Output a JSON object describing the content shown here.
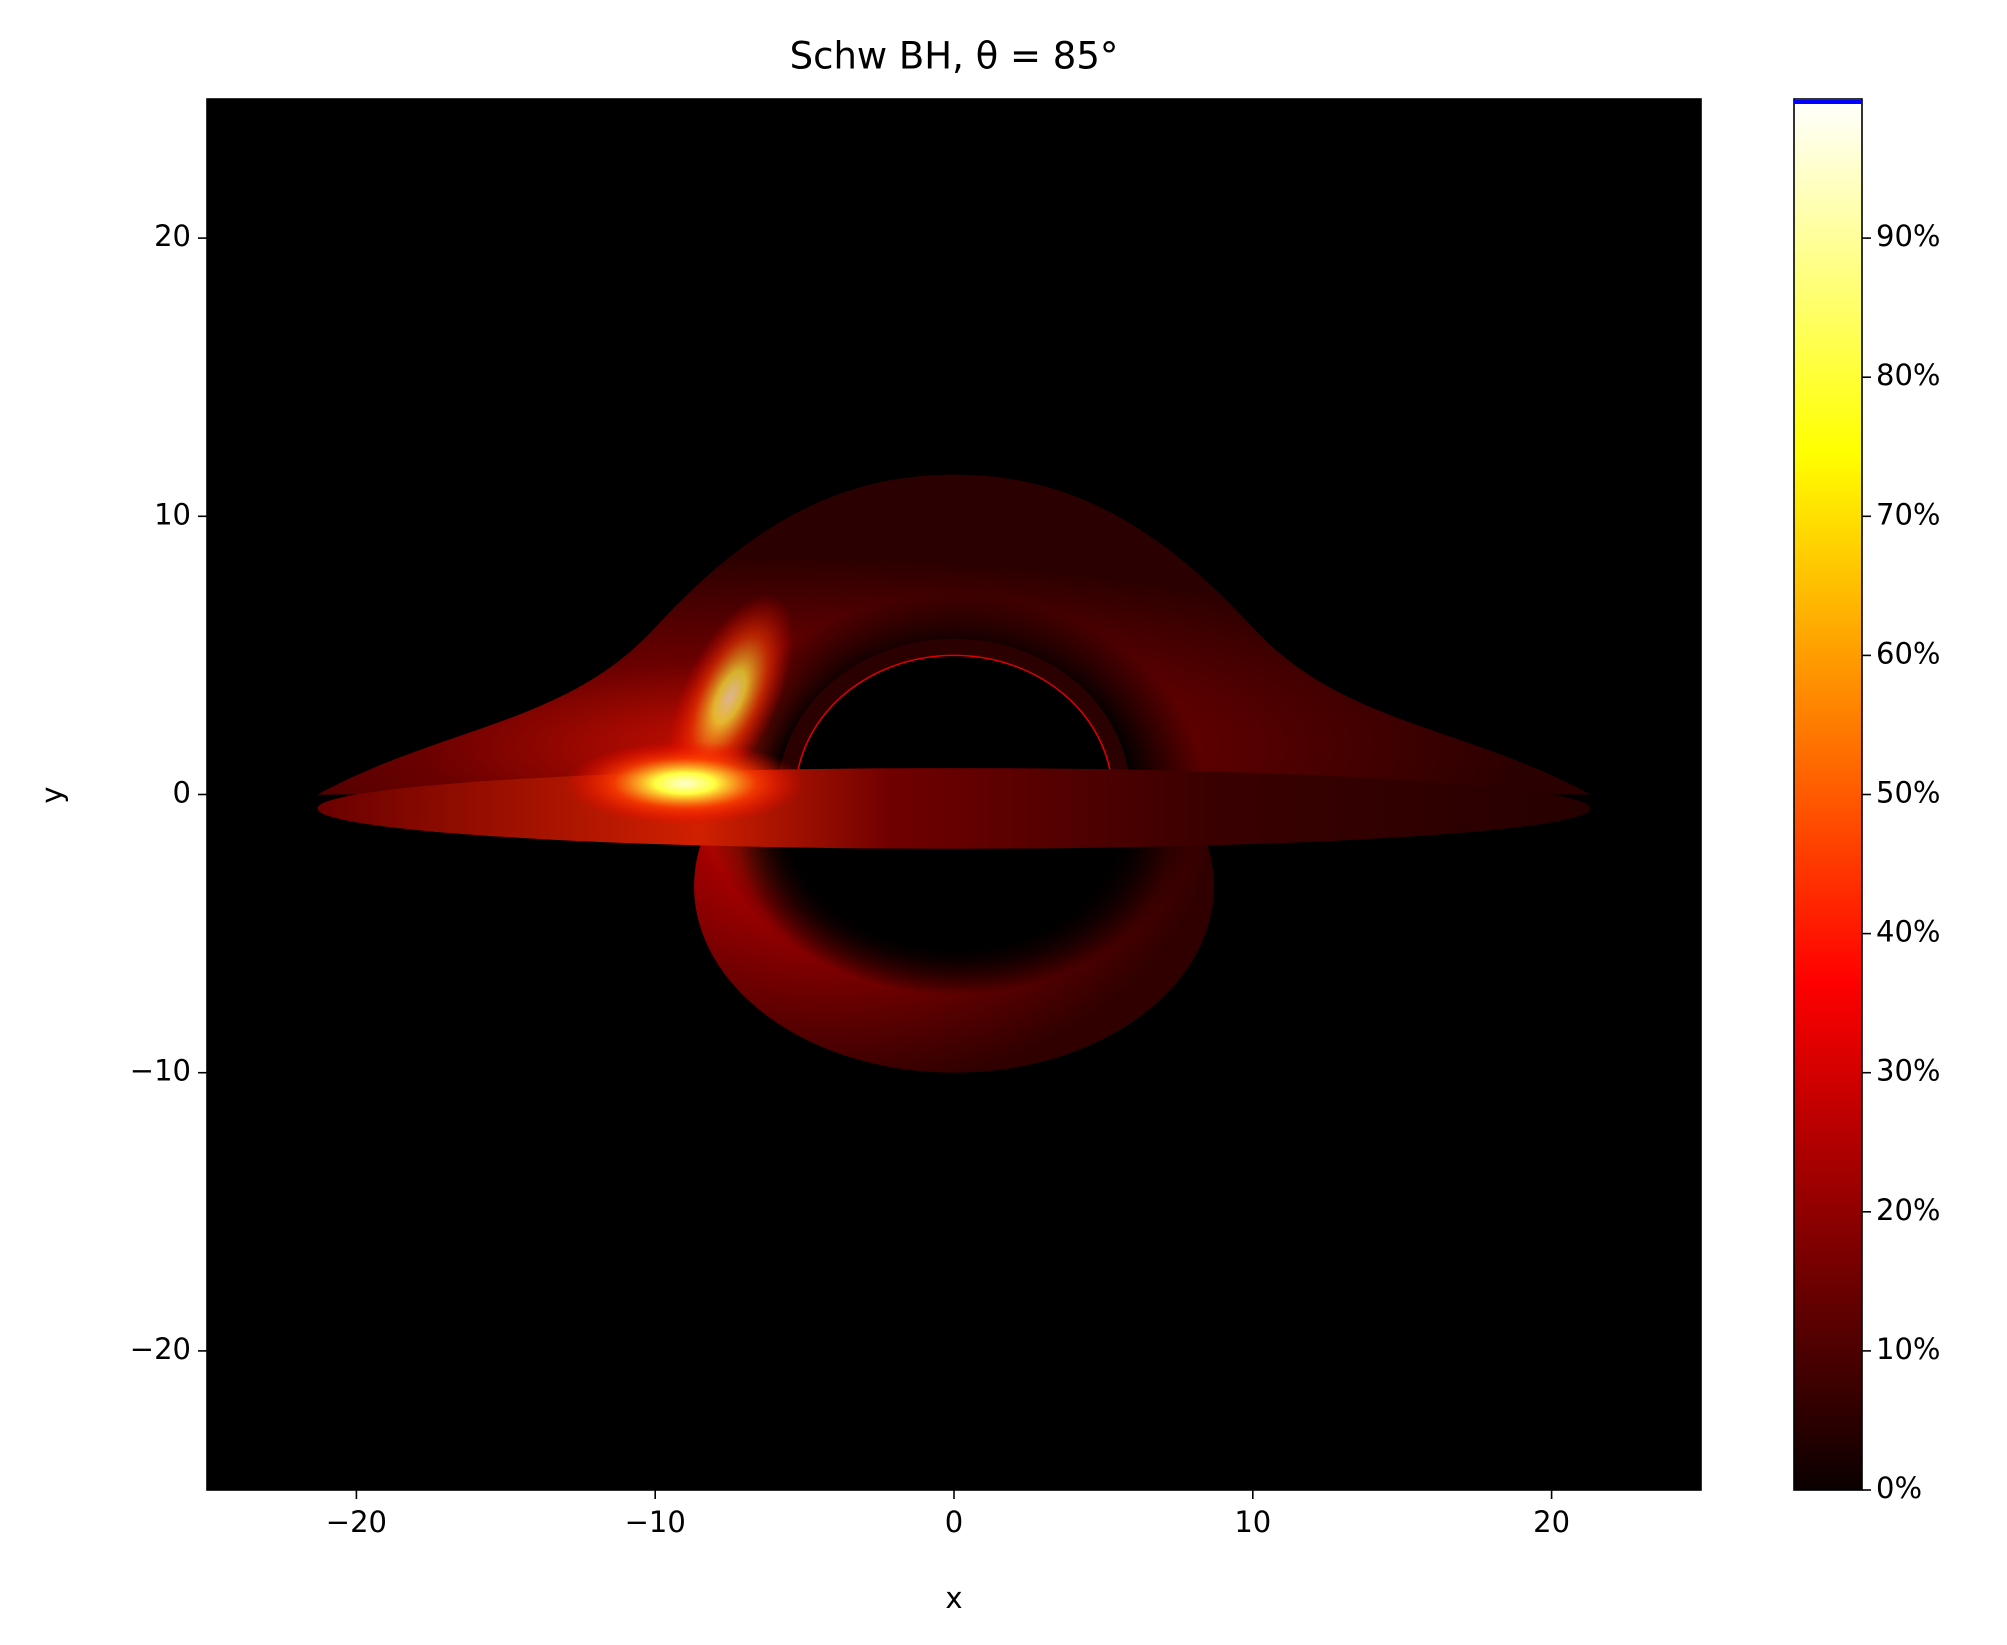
{
  "chart_data": {
    "type": "image",
    "title": "Schw BH,  θ = 85°",
    "x_label": "x",
    "y_label": "y",
    "xlim": [
      -25,
      25
    ],
    "ylim": [
      -25,
      25
    ],
    "xticks": [
      {
        "value": -20,
        "label": "−20"
      },
      {
        "value": -10,
        "label": "−10"
      },
      0,
      10,
      20
    ],
    "yticks": [
      {
        "value": -20,
        "label": "−20"
      },
      {
        "value": -10,
        "label": "−10"
      },
      0,
      10,
      20
    ],
    "colormap": "hot",
    "clim": [
      0,
      100
    ],
    "cticks": [
      {
        "value": 0,
        "label": "0%"
      },
      {
        "value": 10,
        "label": "10%"
      },
      {
        "value": 20,
        "label": "20%"
      },
      {
        "value": 30,
        "label": "30%"
      },
      {
        "value": 40,
        "label": "40%"
      },
      {
        "value": 50,
        "label": "50%"
      },
      {
        "value": 60,
        "label": "60%"
      },
      {
        "value": 70,
        "label": "70%"
      },
      {
        "value": 80,
        "label": "80%"
      },
      {
        "value": 90,
        "label": "90%"
      }
    ]
  }
}
